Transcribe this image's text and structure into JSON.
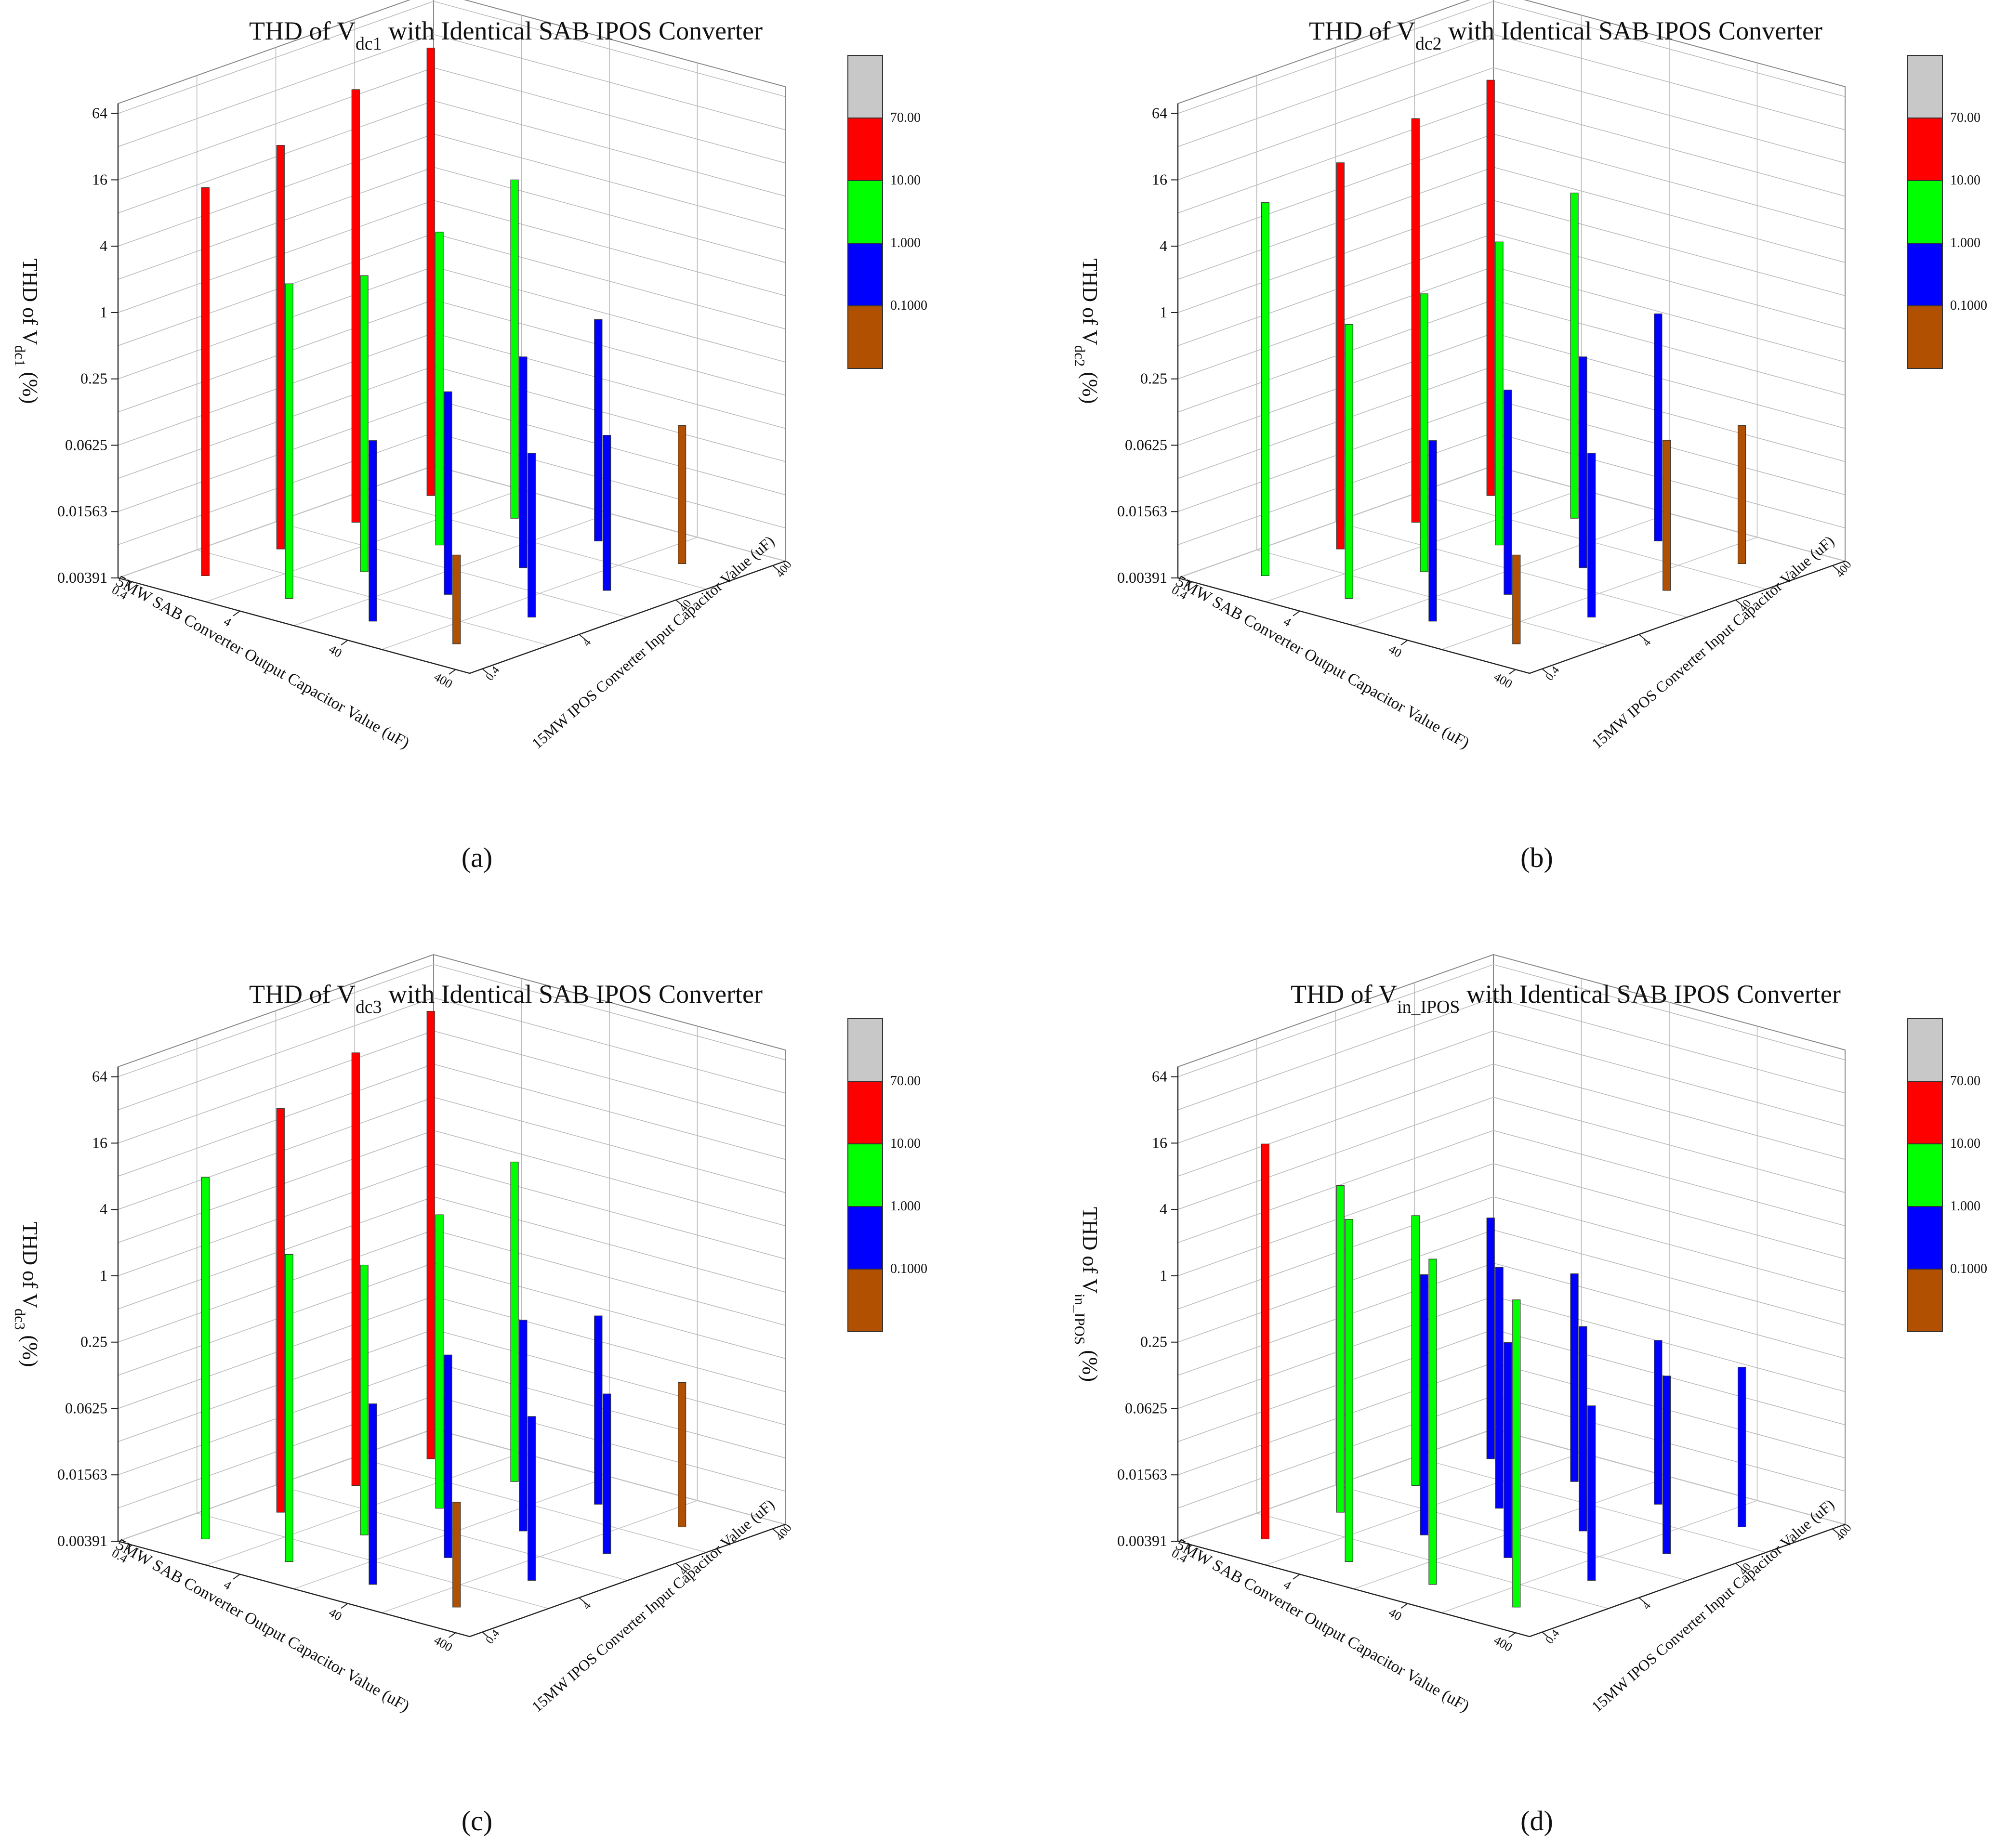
{
  "figure": {
    "colorbar": {
      "bands": [
        {
          "color": "#c8c8c8",
          "label": ""
        },
        {
          "color": "#ff0000",
          "label": "70.00"
        },
        {
          "color": "#00ff00",
          "label": "10.00"
        },
        {
          "color": "#0000ff",
          "label": "1.000"
        },
        {
          "color": "#b05000",
          "label": "0.1000"
        }
      ]
    },
    "shared_axes": {
      "z_ticks": [
        "64",
        "16",
        "4",
        "1",
        "0.25",
        "0.0625",
        "0.01563",
        "0.00391"
      ],
      "z_tick_values": [
        64,
        16,
        4,
        1,
        0.25,
        0.0625,
        0.015625,
        0.00390625
      ],
      "x_ticks": [
        "0.4",
        "4",
        "40",
        "400"
      ],
      "y_ticks": [
        "0.4",
        "4",
        "40",
        "400"
      ],
      "xlabel": "5MW SAB Converter Output Capacitor Value (uF)",
      "ylabel": "15MW IPOS Converter Input Capacitor Value (uF)"
    }
  },
  "chart_data": [
    {
      "type": "bar3d",
      "panel_label": "(a)",
      "title_pre": "THD of V",
      "title_sub": "dc1",
      "title_post": " with Identical SAB IPOS Converter",
      "zlabel_pre": "THD of V",
      "zlabel_sub": "dc1",
      "zlabel_post": " (%)",
      "x": [
        "0.4",
        "4",
        "40",
        "400"
      ],
      "y": [
        "0.4",
        "4",
        "40",
        "400"
      ],
      "values": [
        [
          13,
          18,
          33,
          45
        ],
        [
          2.8,
          1.9,
          2.7,
          4.6
        ],
        [
          0.17,
          0.27,
          0.32,
          0.4
        ],
        [
          0.025,
          0.12,
          0.1,
          0.07
        ]
      ]
    },
    {
      "type": "bar3d",
      "panel_label": "(b)",
      "title_pre": "THD of V",
      "title_sub": "dc2",
      "title_post": " with Identical SAB IPOS Converter",
      "zlabel_pre": "THD of V",
      "zlabel_sub": "dc2",
      "zlabel_post": " (%)",
      "x": [
        "0.4",
        "4",
        "40",
        "400"
      ],
      "y": [
        "0.4",
        "4",
        "40",
        "400"
      ],
      "values": [
        [
          9.5,
          12.5,
          18,
          23
        ],
        [
          1.2,
          1.3,
          2.2,
          3.5
        ],
        [
          0.17,
          0.28,
          0.32,
          0.45
        ],
        [
          0.025,
          0.12,
          0.09,
          0.07
        ]
      ]
    },
    {
      "type": "bar3d",
      "panel_label": "(c)",
      "title_pre": "THD of V",
      "title_sub": "dc3",
      "title_post": " with Identical SAB IPOS Converter",
      "zlabel_pre": "THD of V",
      "zlabel_sub": "dc3",
      "zlabel_post": " (%)",
      "x": [
        "0.4",
        "4",
        "40",
        "400"
      ],
      "y": [
        "0.4",
        "4",
        "40",
        "400"
      ],
      "values": [
        [
          7.5,
          18,
          33,
          45
        ],
        [
          2.4,
          1.1,
          1.8,
          3.1
        ],
        [
          0.17,
          0.27,
          0.32,
          0.2
        ],
        [
          0.035,
          0.12,
          0.11,
          0.08
        ]
      ]
    },
    {
      "type": "bar3d",
      "panel_label": "(d)",
      "title_pre": "THD of V",
      "title_sub": "in_IPOS",
      "title_post": " with Identical SAB IPOS Converter",
      "zlabel_pre": "THD of V",
      "zlabel_sub": "in_IPOS",
      "zlabel_post": " (%)",
      "x": [
        "0.4",
        "4",
        "40",
        "400"
      ],
      "y": [
        "0.4",
        "4",
        "40",
        "400"
      ],
      "values": [
        [
          15,
          3.6,
          1.1,
          0.6
        ],
        [
          5,
          0.9,
          0.6,
          0.3
        ],
        [
          3.5,
          0.35,
          0.28,
          0.12
        ],
        [
          2.4,
          0.15,
          0.16,
          0.11
        ]
      ]
    }
  ]
}
